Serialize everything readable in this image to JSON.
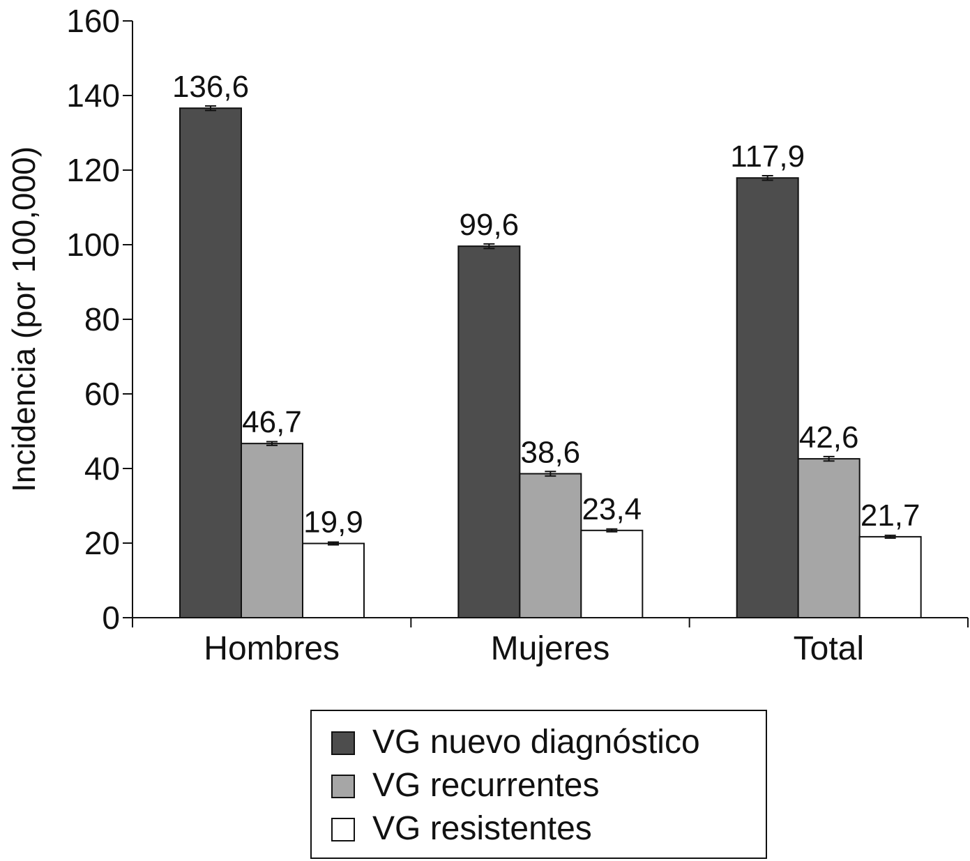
{
  "chart_data": {
    "type": "bar",
    "title": "",
    "xlabel": "",
    "ylabel": "Incidencia (por 100,000)",
    "ylim": [
      0,
      160
    ],
    "yticks": [
      0,
      20,
      40,
      60,
      80,
      100,
      120,
      140,
      160
    ],
    "categories": [
      "Hombres",
      "Mujeres",
      "Total"
    ],
    "series": [
      {
        "name": "VG nuevo diagnóstico",
        "values": [
          136.6,
          99.6,
          117.9
        ],
        "labels": [
          "136,6",
          "99,6",
          "117,9"
        ],
        "error": [
          0.6,
          0.6,
          0.6
        ],
        "color": "#4d4d4d"
      },
      {
        "name": "VG recurrentes",
        "values": [
          46.7,
          38.6,
          42.6
        ],
        "labels": [
          "46,7",
          "38,6",
          "42,6"
        ],
        "error": [
          0.5,
          0.6,
          0.6
        ],
        "color": "#a6a6a6"
      },
      {
        "name": "VG resistentes",
        "values": [
          19.9,
          23.4,
          21.7
        ],
        "labels": [
          "19,9",
          "23,4",
          "21,7"
        ],
        "error": [
          0.3,
          0.3,
          0.3
        ],
        "color": "#ffffff"
      }
    ],
    "error_bars": true,
    "grid": false,
    "legend_position": "bottom-center"
  }
}
